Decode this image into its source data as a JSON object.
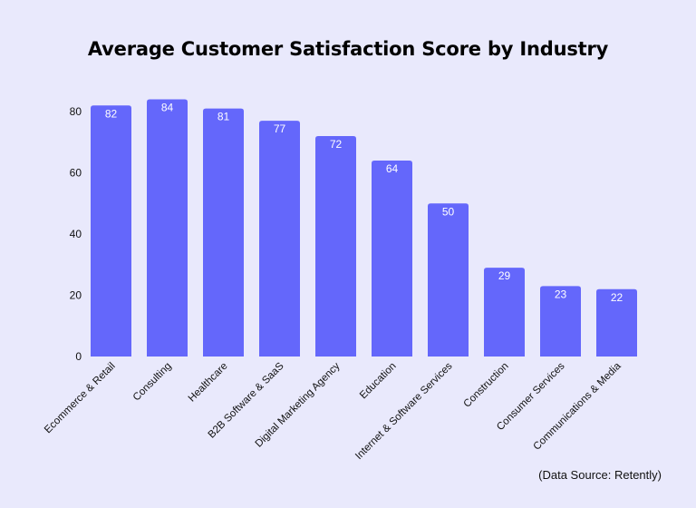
{
  "chart_data": {
    "type": "bar",
    "title": "Average Customer Satisfaction Score by Industry",
    "xlabel": "",
    "ylabel": "",
    "categories": [
      "Ecommerce & Retail",
      "Consulting",
      "Healthcare",
      "B2B Software & SaaS",
      "Digital Marketing Agency",
      "Education",
      "Internet & Software Services",
      "Construction",
      "Consumer Services",
      "Communications & Media"
    ],
    "values": [
      82,
      84,
      81,
      77,
      72,
      64,
      50,
      29,
      23,
      22
    ],
    "yticks": [
      0,
      20,
      40,
      60,
      80
    ],
    "ylim": [
      0,
      90
    ],
    "grid": false,
    "data_labels": true,
    "bar_color": "#6467fb",
    "label_color": "#ffffff"
  },
  "source_note": "(Data Source: Retently)"
}
